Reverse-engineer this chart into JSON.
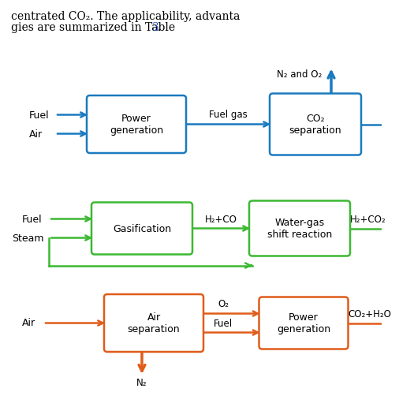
{
  "bg_color": "#ffffff",
  "blue_color": "#1a7abf",
  "green_color": "#3cb832",
  "orange_color": "#e05c1a",
  "diagram1": {
    "color": "#1a7abf",
    "box1_label": "Power\ngeneration",
    "box2_label": "CO₂\nseparation",
    "arrow_label": "Fuel gas",
    "left_label1": "Fuel",
    "left_label2": "Air",
    "top_label": "N₂ and O₂"
  },
  "diagram2": {
    "color": "#3cb832",
    "box1_label": "Gasification",
    "box2_label": "Water-gas\nshift reaction",
    "arrow_label": "H₂+CO",
    "left_label1": "Fuel",
    "left_label2": "Steam",
    "right_label": "H₂+CO₂"
  },
  "diagram3": {
    "color": "#e05c1a",
    "box1_label": "Air\nseparation",
    "box2_label": "Power\ngeneration",
    "top_arrow_label": "O₂",
    "mid_arrow_label": "Fuel",
    "left_label": "Air",
    "right_label": "CO₂+H₂O",
    "bottom_label": "N₂"
  }
}
